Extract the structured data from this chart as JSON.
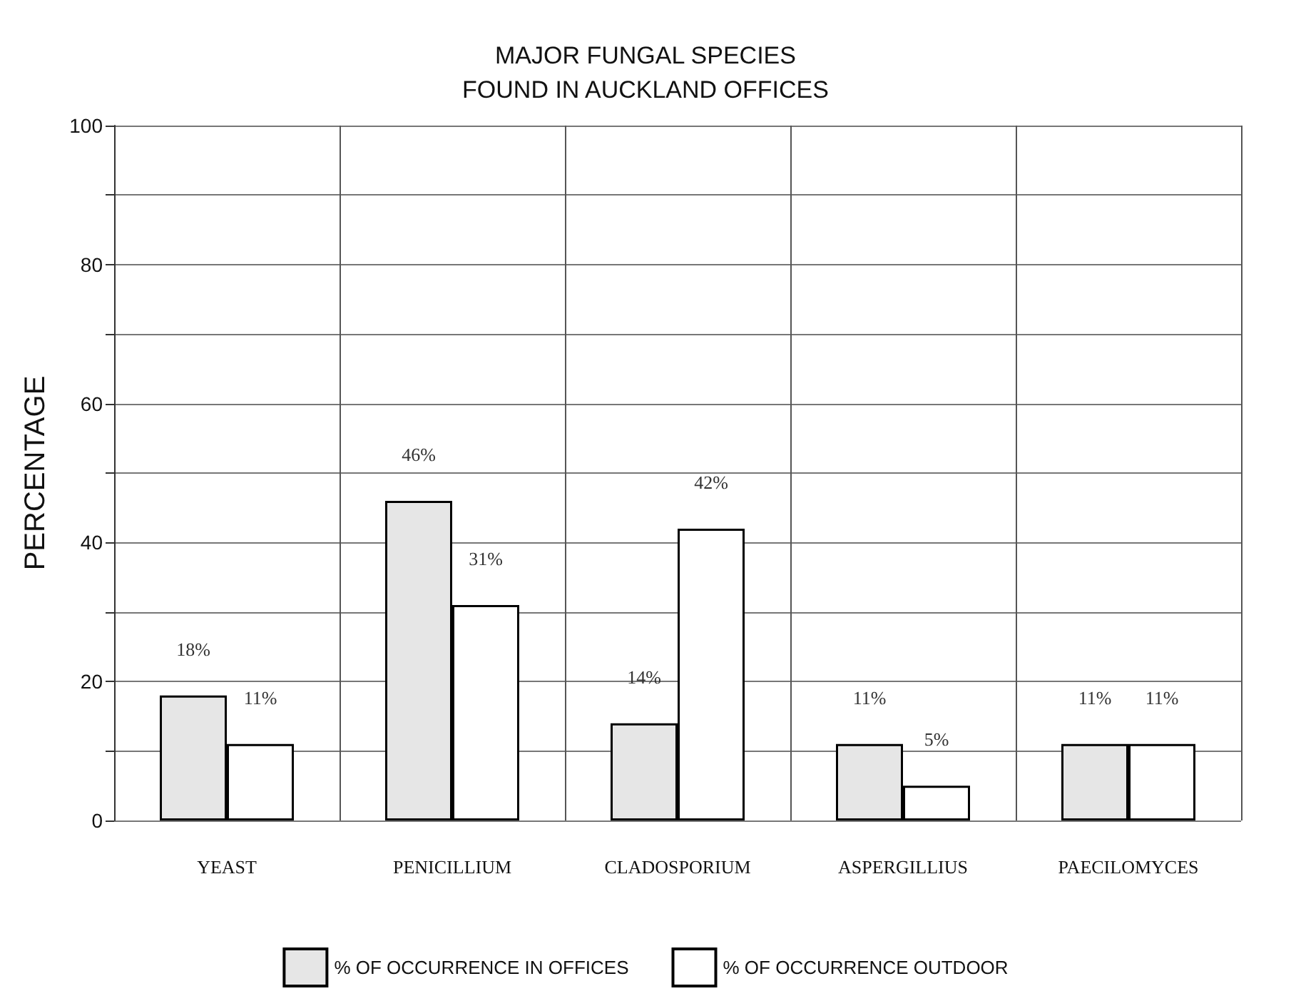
{
  "chart_data": {
    "type": "bar",
    "title": "MAJOR FUNGAL SPECIES\nFOUND IN AUCKLAND OFFICES",
    "ylabel": "PERCENTAGE",
    "categories": [
      "YEAST",
      "PENICILLIUM",
      "CLADOSPORIUM",
      "ASPERGILLIUS",
      "PAECILOMYCES"
    ],
    "series": [
      {
        "name": "% OF OCCURRENCE IN OFFICES",
        "color": "#e6e6e6",
        "values": [
          18,
          46,
          14,
          11,
          11
        ],
        "value_labels": [
          "18%",
          "46%",
          "14%",
          "11%",
          "11%"
        ]
      },
      {
        "name": "% OF OCCURRENCE OUTDOOR",
        "color": "#ffffff",
        "values": [
          11,
          31,
          42,
          5,
          11
        ],
        "value_labels": [
          "11%",
          "31%",
          "42%",
          "5%",
          "11%"
        ]
      }
    ],
    "ylim": [
      0,
      100
    ],
    "yticks": [
      0,
      {
        "value": 10,
        "label": null
      },
      20,
      {
        "value": 30,
        "label": null
      },
      40,
      {
        "value": 50,
        "label": null
      },
      60,
      {
        "value": 70,
        "label": null
      },
      80,
      {
        "value": 90,
        "label": null
      },
      100
    ],
    "grid": true,
    "legend": "bottom"
  }
}
